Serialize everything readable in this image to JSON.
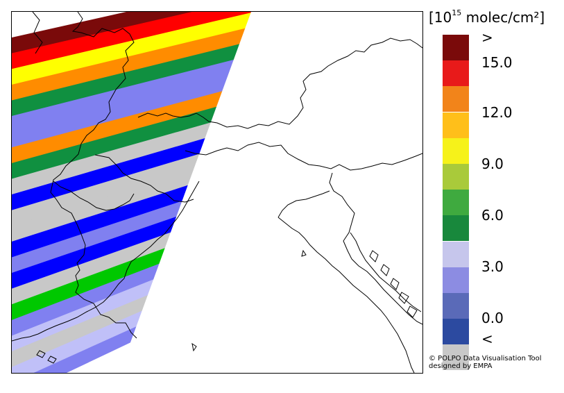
{
  "legend": {
    "unit_open": "[10",
    "unit_exp": "15",
    "unit_close": " molec/cm²]",
    "swatches": [
      {
        "name": "above-max",
        "color": "#7a0a0a"
      },
      {
        "name": "15-16.5",
        "color": "#e81a1a"
      },
      {
        "name": "13.5-15",
        "color": "#f2841a"
      },
      {
        "name": "12-13.5",
        "color": "#ffbf1a"
      },
      {
        "name": "10.5-12",
        "color": "#f6f21a"
      },
      {
        "name": "9-10.5",
        "color": "#a9ca3a"
      },
      {
        "name": "7.5-9",
        "color": "#3faa3f"
      },
      {
        "name": "6-7.5",
        "color": "#18883c"
      },
      {
        "name": "4.5-6",
        "color": "#c6c6ec"
      },
      {
        "name": "3-4.5",
        "color": "#8c8ce2"
      },
      {
        "name": "1.5-3",
        "color": "#5a6ab8"
      },
      {
        "name": "0-1.5",
        "color": "#2c4aa0"
      },
      {
        "name": "below-min",
        "color": "#c8c8c8"
      }
    ],
    "ticks": [
      ">",
      "15.0",
      "12.0",
      "9.0",
      "6.0",
      "3.0",
      "0.0",
      "<"
    ]
  },
  "credits": {
    "line1": "© POLPO Data Visualisation Tool",
    "line2": "designed by EMPA"
  },
  "map": {
    "swath_colors": {
      "darkred": "#7a0a0a",
      "red": "#ff0000",
      "yellow": "#ffff00",
      "orange": "#ff8c00",
      "green": "#109040",
      "lightblue": "#8080f0",
      "grey": "#c8c8c8",
      "blue": "#0000ff",
      "brightgreen": "#00c800",
      "pale": "#c0c0f8"
    },
    "swath_sequence": [
      "darkred",
      "red",
      "yellow",
      "orange",
      "green",
      "lightblue",
      "lightblue",
      "orange",
      "green",
      "grey",
      "blue",
      "grey",
      "grey",
      "blue",
      "lightblue",
      "blue",
      "grey",
      "brightgreen",
      "lightblue",
      "pale",
      "grey",
      "pale",
      "lightblue"
    ]
  }
}
